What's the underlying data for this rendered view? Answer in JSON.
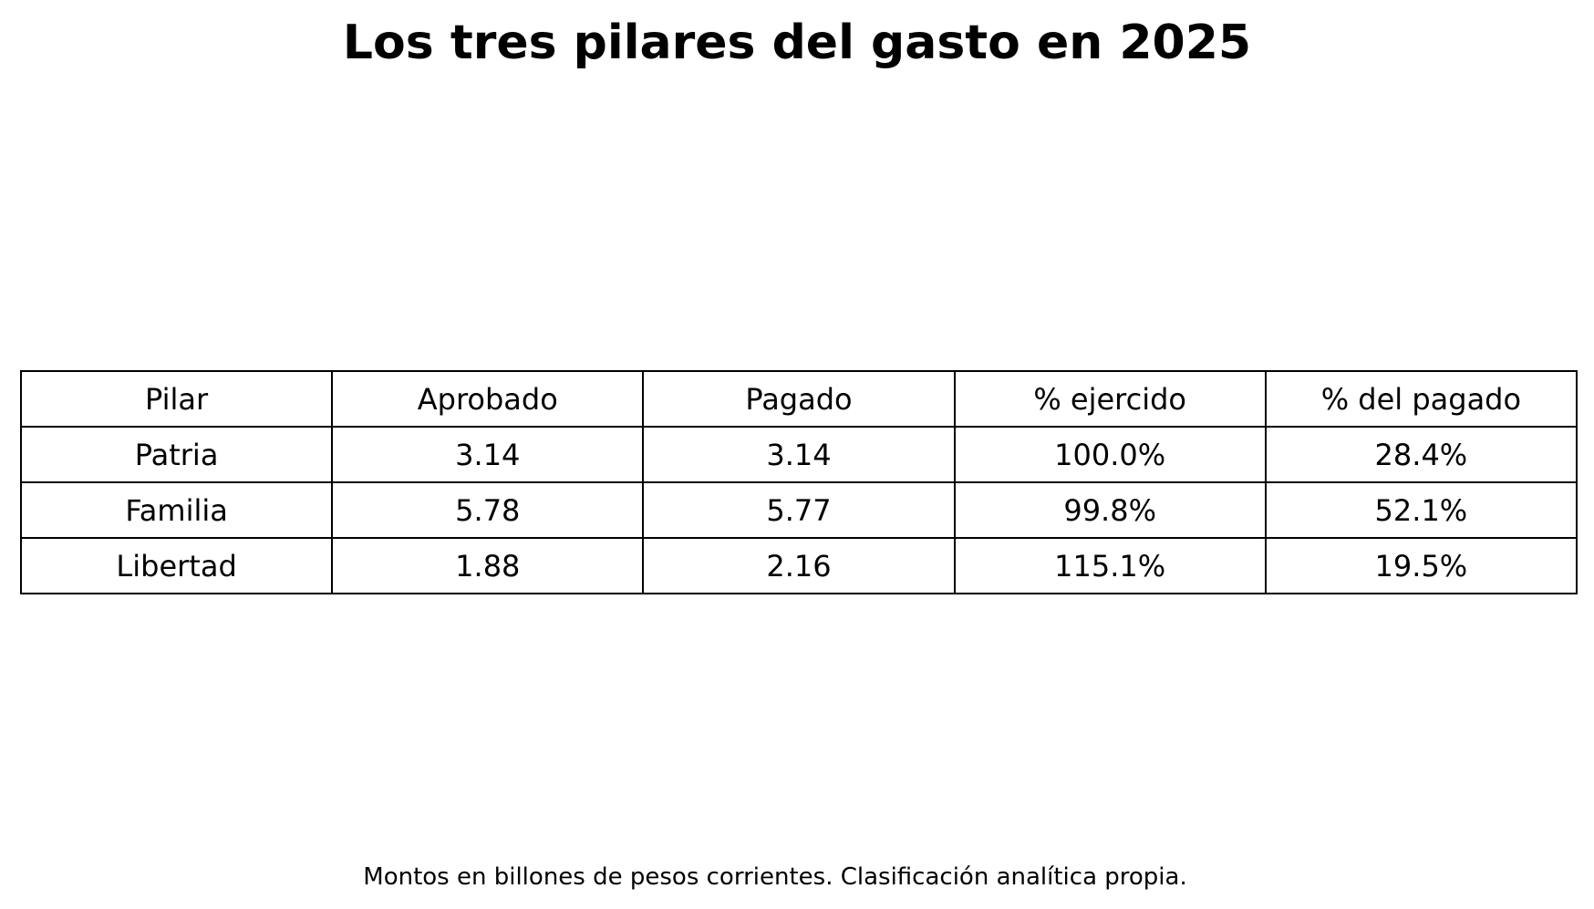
{
  "chart_data": {
    "type": "table",
    "title": "Los tres pilares del gasto en 2025",
    "columns": [
      "Pilar",
      "Aprobado",
      "Pagado",
      "% ejercido",
      "% del pagado"
    ],
    "rows": [
      [
        "Patria",
        "3.14",
        "3.14",
        "100.0%",
        "28.4%"
      ],
      [
        "Familia",
        "5.78",
        "5.77",
        "99.8%",
        "52.1%"
      ],
      [
        "Libertad",
        "1.88",
        "2.16",
        "115.1%",
        "19.5%"
      ]
    ],
    "footnote": "Montos en billones de pesos corrientes. Clasificación analítica propia."
  }
}
